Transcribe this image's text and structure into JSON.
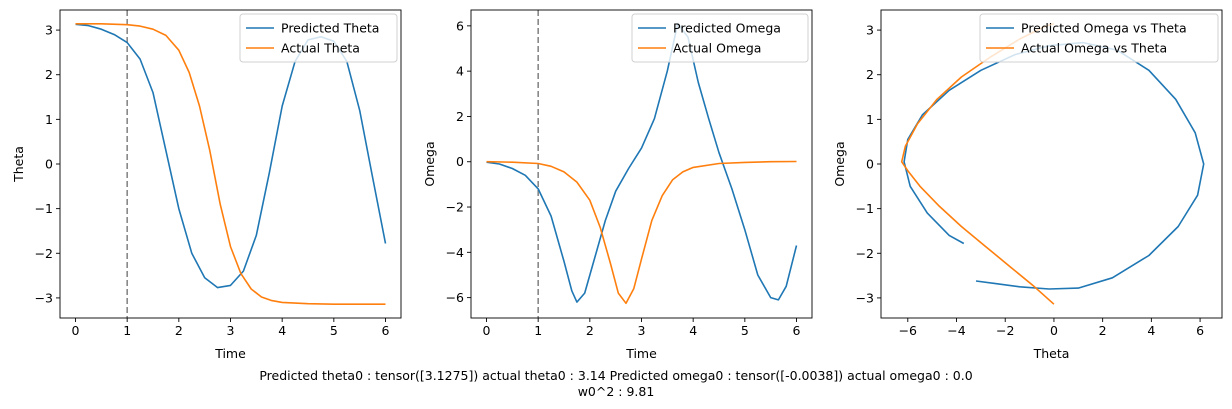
{
  "colors": {
    "series1": "#1f77b4",
    "series2": "#ff7f0e",
    "vline": "#808080"
  },
  "caption": {
    "line1": "Predicted theta0 : tensor([3.1275]) actual theta0 : 3.14 Predicted omega0 : tensor([-0.0038]) actual omega0 : 0.0",
    "line2": "w0^2 : 9.81"
  },
  "chart_data": [
    {
      "type": "line",
      "xlabel": "Time",
      "ylabel": "Theta",
      "xlim": [
        -0.3,
        6.3
      ],
      "ylim": [
        -3.45,
        3.45
      ],
      "xticks": [
        0,
        1,
        2,
        3,
        4,
        5,
        6
      ],
      "yticks": [
        -3,
        -2,
        -1,
        0,
        1,
        2,
        3
      ],
      "grid": false,
      "legend_position": "top-right",
      "vline": {
        "x": 1,
        "style": "dashed"
      },
      "series": [
        {
          "name": "Predicted Theta",
          "color": "series1",
          "x": [
            0,
            0.25,
            0.5,
            0.75,
            1.0,
            1.25,
            1.5,
            1.75,
            2.0,
            2.25,
            2.5,
            2.75,
            3.0,
            3.25,
            3.5,
            3.75,
            4.0,
            4.25,
            4.5,
            4.75,
            5.0,
            5.25,
            5.5,
            5.75,
            6.0
          ],
          "y": [
            3.13,
            3.1,
            3.02,
            2.9,
            2.72,
            2.35,
            1.6,
            0.3,
            -1.0,
            -2.0,
            -2.55,
            -2.77,
            -2.72,
            -2.4,
            -1.6,
            -0.2,
            1.3,
            2.3,
            2.78,
            2.85,
            2.75,
            2.3,
            1.2,
            -0.3,
            -1.78
          ]
        },
        {
          "name": "Actual Theta",
          "color": "series2",
          "x": [
            0,
            0.5,
            1.0,
            1.25,
            1.5,
            1.75,
            2.0,
            2.2,
            2.4,
            2.6,
            2.8,
            3.0,
            3.2,
            3.4,
            3.6,
            3.8,
            4.0,
            4.5,
            5.0,
            5.5,
            6.0
          ],
          "y": [
            3.14,
            3.14,
            3.12,
            3.09,
            3.02,
            2.88,
            2.55,
            2.05,
            1.3,
            0.3,
            -0.9,
            -1.85,
            -2.45,
            -2.8,
            -2.98,
            -3.06,
            -3.1,
            -3.13,
            -3.14,
            -3.14,
            -3.14
          ]
        }
      ]
    },
    {
      "type": "line",
      "xlabel": "Time",
      "ylabel": "Omega",
      "xlim": [
        -0.3,
        6.3
      ],
      "ylim": [
        -6.9,
        6.7
      ],
      "xticks": [
        0,
        1,
        2,
        3,
        4,
        5,
        6
      ],
      "yticks": [
        -6,
        -4,
        -2,
        0,
        2,
        4,
        6
      ],
      "grid": false,
      "legend_position": "top-right",
      "vline": {
        "x": 1,
        "style": "dashed"
      },
      "series": [
        {
          "name": "Predicted Omega",
          "color": "series1",
          "x": [
            0,
            0.25,
            0.5,
            0.75,
            1.0,
            1.25,
            1.5,
            1.65,
            1.75,
            1.9,
            2.1,
            2.3,
            2.5,
            2.75,
            3.0,
            3.25,
            3.5,
            3.7,
            3.9,
            4.1,
            4.3,
            4.5,
            4.75,
            5.0,
            5.25,
            5.5,
            5.65,
            5.8,
            6.0
          ],
          "y": [
            -0.02,
            -0.1,
            -0.3,
            -0.6,
            -1.2,
            -2.4,
            -4.4,
            -5.7,
            -6.2,
            -5.8,
            -4.2,
            -2.6,
            -1.3,
            -0.3,
            0.6,
            1.9,
            4.0,
            6.1,
            5.5,
            3.5,
            1.9,
            0.4,
            -1.2,
            -3.0,
            -5.0,
            -6.0,
            -6.1,
            -5.5,
            -3.7
          ]
        },
        {
          "name": "Actual Omega",
          "color": "series2",
          "x": [
            0,
            0.5,
            1.0,
            1.25,
            1.5,
            1.75,
            2.0,
            2.2,
            2.4,
            2.55,
            2.7,
            2.85,
            3.0,
            3.2,
            3.4,
            3.6,
            3.8,
            4.0,
            4.5,
            5.0,
            5.5,
            6.0
          ],
          "y": [
            0.0,
            -0.02,
            -0.08,
            -0.2,
            -0.45,
            -0.9,
            -1.7,
            -2.9,
            -4.5,
            -5.8,
            -6.25,
            -5.6,
            -4.3,
            -2.6,
            -1.5,
            -0.8,
            -0.45,
            -0.25,
            -0.08,
            -0.03,
            0.0,
            0.01
          ]
        }
      ]
    },
    {
      "type": "line",
      "xlabel": "Theta",
      "ylabel": "Omega",
      "xlim": [
        -7.1,
        6.9
      ],
      "ylim": [
        -3.45,
        3.45
      ],
      "xticks": [
        -6,
        -4,
        -2,
        0,
        2,
        4,
        6
      ],
      "yticks": [
        -3,
        -2,
        -1,
        0,
        1,
        2,
        3
      ],
      "grid": false,
      "legend_position": "top-right",
      "series": [
        {
          "name": "Predicted Omega vs Theta",
          "color": "series1",
          "x": [
            -3.7,
            -4.3,
            -5.2,
            -5.9,
            -6.15,
            -6.0,
            -5.4,
            -4.3,
            -3.0,
            -1.6,
            -0.2,
            1.2,
            2.6,
            3.9,
            5.0,
            5.8,
            6.15,
            5.9,
            5.1,
            3.9,
            2.4,
            1.0,
            -0.2,
            -1.4,
            -2.4,
            -3.2
          ],
          "y": [
            -1.78,
            -1.6,
            -1.1,
            -0.5,
            0.05,
            0.55,
            1.1,
            1.65,
            2.1,
            2.45,
            2.65,
            2.72,
            2.55,
            2.1,
            1.45,
            0.7,
            0.0,
            -0.7,
            -1.4,
            -2.05,
            -2.55,
            -2.78,
            -2.8,
            -2.75,
            -2.68,
            -2.62
          ]
        },
        {
          "name": "Actual Omega vs Theta",
          "color": "series2",
          "x": [
            0.0,
            -0.8,
            -1.8,
            -2.8,
            -3.8,
            -4.7,
            -5.5,
            -6.0,
            -6.25,
            -6.1,
            -5.6,
            -4.8,
            -3.8,
            -2.6,
            -1.4,
            -0.3,
            0.0
          ],
          "y": [
            -3.14,
            -2.75,
            -2.3,
            -1.85,
            -1.4,
            -0.95,
            -0.5,
            -0.15,
            0.05,
            0.4,
            0.9,
            1.45,
            1.95,
            2.4,
            2.8,
            3.1,
            3.14
          ]
        }
      ]
    }
  ]
}
